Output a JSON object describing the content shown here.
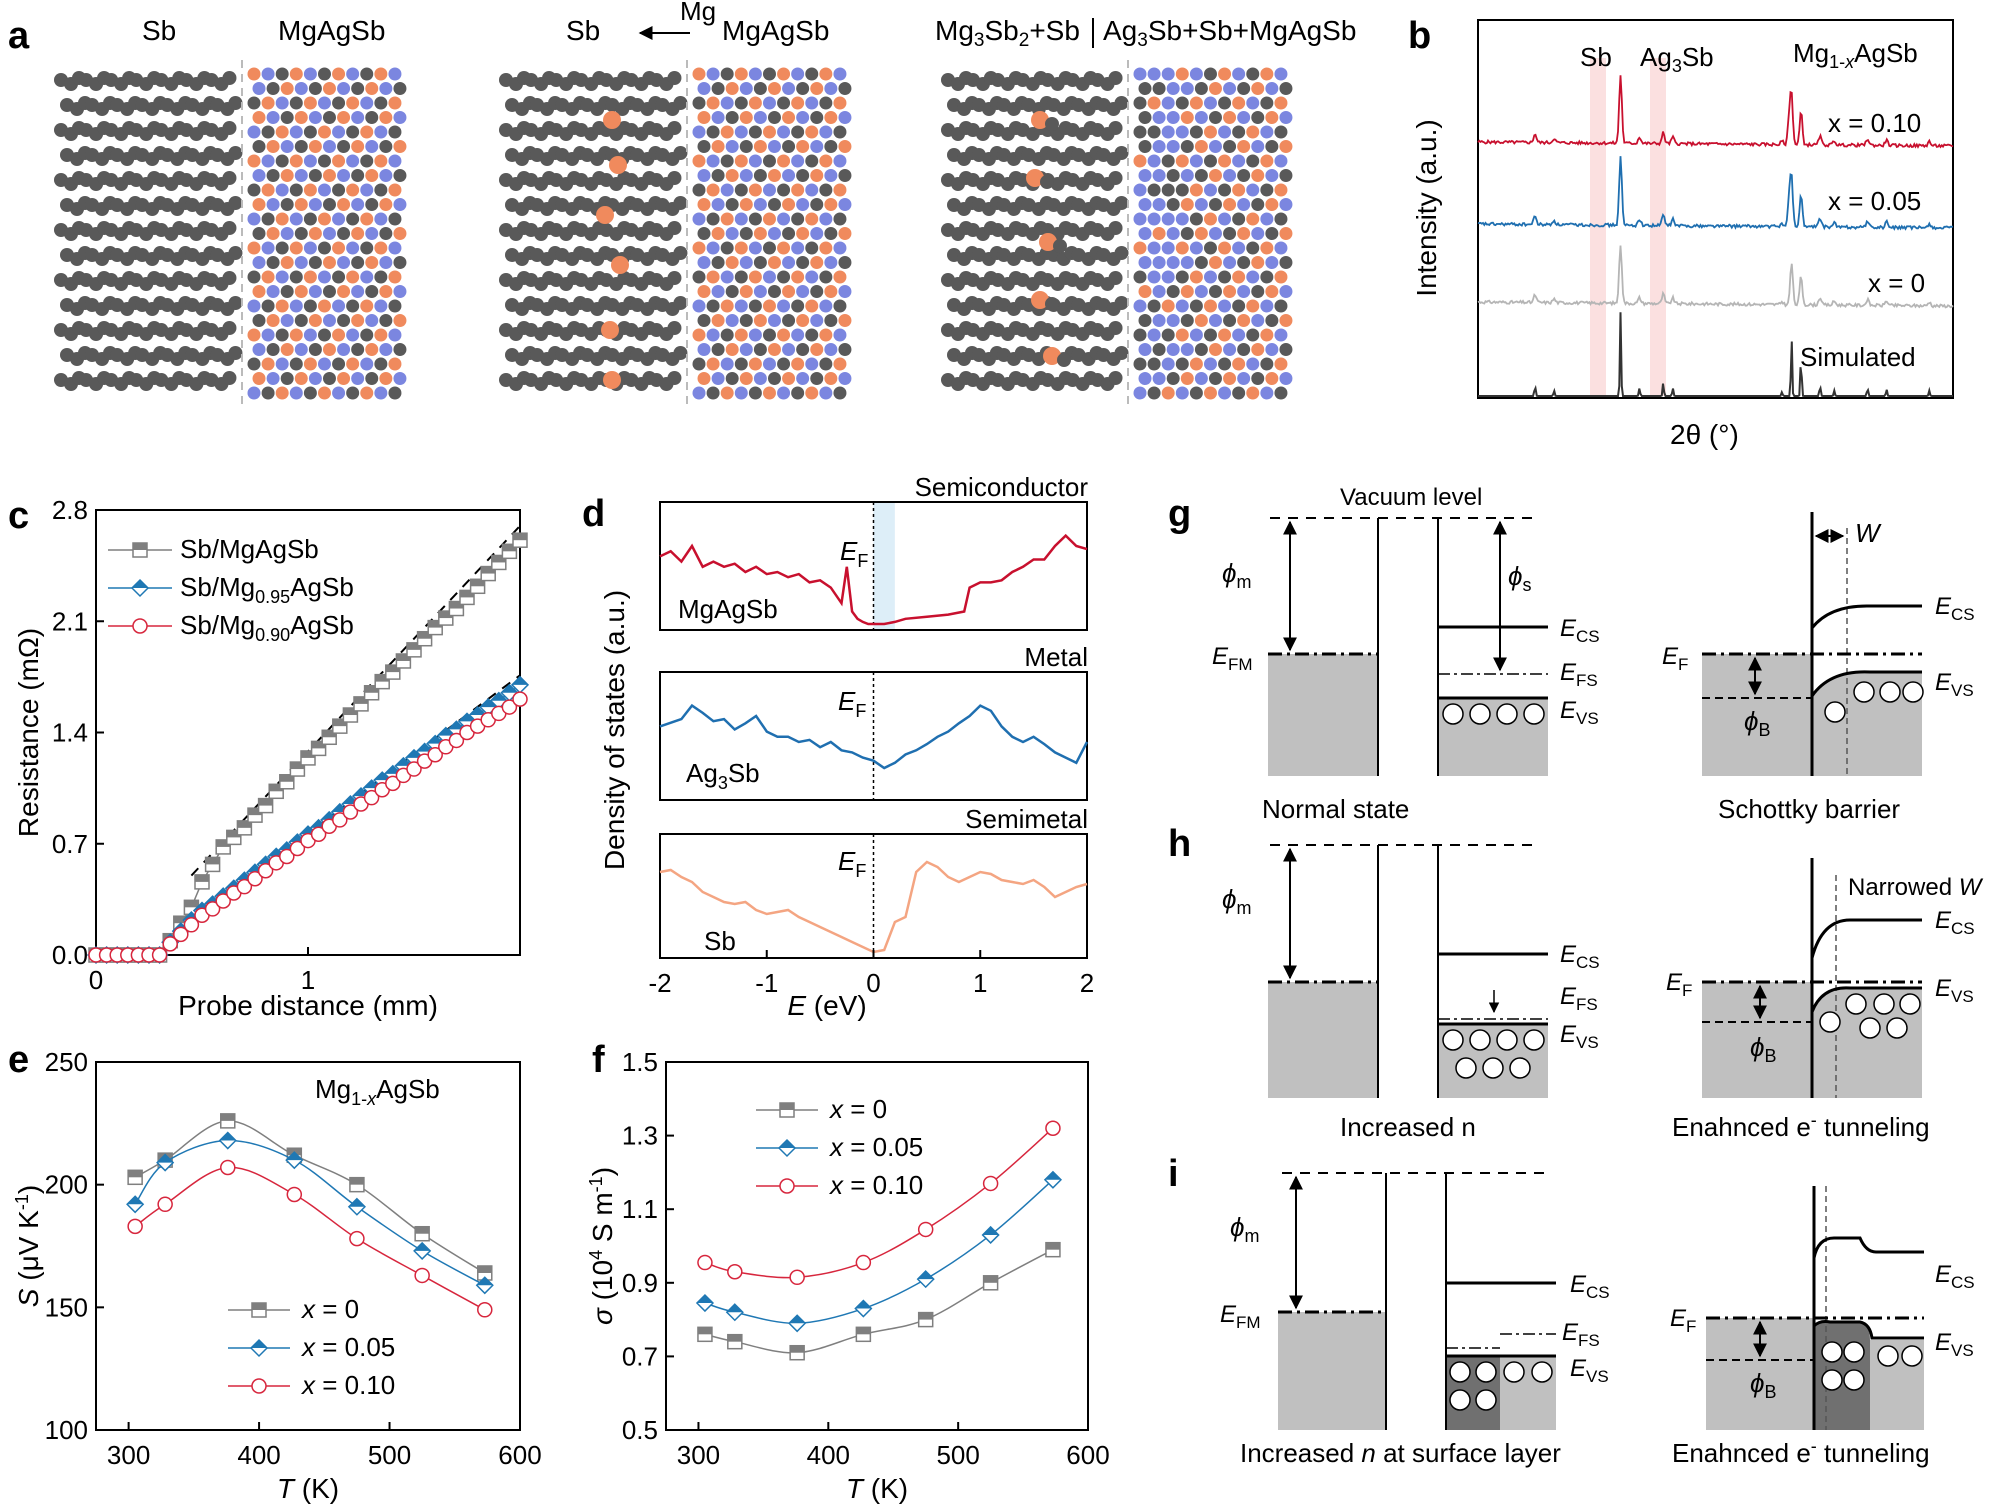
{
  "panel_labels": {
    "a": "a",
    "b": "b",
    "c": "c",
    "d": "d",
    "e": "e",
    "f": "f",
    "g": "g",
    "h": "h",
    "i": "i"
  },
  "panel_a": {
    "s1_left": "Sb",
    "s1_right": "MgAgSb",
    "s2_left": "Sb",
    "s2_arrow": "Mg",
    "s2_right": "MgAgSb",
    "s3_left": "Mg3Sb2+Sb",
    "s3_right": "Ag3Sb+Sb+MgAgSb",
    "colors": {
      "sb": "#595959",
      "ag": "#f08a5d",
      "mg": "#7b86e0"
    }
  },
  "panel_b": {
    "ylabel": "Intensity (a.u.)",
    "xlabel": "2θ (°)",
    "title": "Mg1-xAgSb",
    "marker1": "Sb",
    "marker2": "Ag3Sb",
    "traces": [
      {
        "label": "x = 0.10",
        "color": "#c8102e"
      },
      {
        "label": "x = 0.05",
        "color": "#1f6fb0"
      },
      {
        "label": "x = 0",
        "color": "#b5b5b5"
      },
      {
        "label": "Simulated",
        "color": "#333333"
      }
    ]
  },
  "chart_data": [
    {
      "panel": "c",
      "type": "line",
      "xlabel": "Probe distance (mm)",
      "ylabel": "Resistance (mΩ)",
      "xlim": [
        0,
        2.0
      ],
      "ylim": [
        0,
        2.8
      ],
      "xticks": [
        "0",
        "1"
      ],
      "yticks": [
        "0.0",
        "0.7",
        "1.4",
        "2.1",
        "2.8"
      ],
      "series": [
        {
          "name": "Sb/MgAgSb",
          "color": "#7f7f7f",
          "marker": "square",
          "x": [
            0,
            0.05,
            0.1,
            0.15,
            0.2,
            0.25,
            0.3,
            0.35,
            0.4,
            0.45,
            0.5,
            0.55,
            0.6,
            0.65,
            0.7,
            0.75,
            0.8,
            0.85,
            0.9,
            0.95,
            1.0,
            1.05,
            1.1,
            1.15,
            1.2,
            1.25,
            1.3,
            1.35,
            1.4,
            1.45,
            1.5,
            1.55,
            1.6,
            1.65,
            1.7,
            1.75,
            1.8,
            1.85,
            1.9,
            1.95,
            2.0
          ],
          "values": [
            0,
            0,
            0,
            0,
            0,
            0,
            0,
            0.09,
            0.2,
            0.3,
            0.46,
            0.57,
            0.68,
            0.74,
            0.8,
            0.88,
            0.94,
            1.03,
            1.09,
            1.17,
            1.24,
            1.3,
            1.37,
            1.44,
            1.51,
            1.58,
            1.65,
            1.72,
            1.78,
            1.85,
            1.92,
            1.99,
            2.06,
            2.12,
            2.18,
            2.25,
            2.32,
            2.4,
            2.47,
            2.54,
            2.61
          ]
        },
        {
          "name": "Sb/Mg0.95AgSb",
          "color": "#1f78b4",
          "marker": "diamond",
          "x": [
            0,
            0.05,
            0.1,
            0.15,
            0.2,
            0.25,
            0.3,
            0.35,
            0.4,
            0.45,
            0.5,
            0.55,
            0.6,
            0.65,
            0.7,
            0.75,
            0.8,
            0.85,
            0.9,
            0.95,
            1.0,
            1.05,
            1.1,
            1.15,
            1.2,
            1.25,
            1.3,
            1.35,
            1.4,
            1.45,
            1.5,
            1.55,
            1.6,
            1.65,
            1.7,
            1.75,
            1.8,
            1.85,
            1.9,
            1.95,
            2.0
          ],
          "values": [
            0,
            0,
            0,
            0,
            0,
            0,
            0,
            0.08,
            0.15,
            0.22,
            0.28,
            0.32,
            0.37,
            0.42,
            0.47,
            0.52,
            0.57,
            0.62,
            0.66,
            0.71,
            0.76,
            0.8,
            0.85,
            0.9,
            0.95,
            1.0,
            1.05,
            1.1,
            1.14,
            1.19,
            1.24,
            1.28,
            1.33,
            1.38,
            1.42,
            1.47,
            1.51,
            1.56,
            1.6,
            1.65,
            1.7
          ]
        },
        {
          "name": "Sb/Mg0.90AgSb",
          "color": "#d7263d",
          "marker": "circle",
          "x": [
            0,
            0.05,
            0.1,
            0.15,
            0.2,
            0.25,
            0.3,
            0.35,
            0.4,
            0.45,
            0.5,
            0.55,
            0.6,
            0.65,
            0.7,
            0.75,
            0.8,
            0.85,
            0.9,
            0.95,
            1.0,
            1.05,
            1.1,
            1.15,
            1.2,
            1.25,
            1.3,
            1.35,
            1.4,
            1.45,
            1.5,
            1.55,
            1.6,
            1.65,
            1.7,
            1.75,
            1.8,
            1.85,
            1.9,
            1.95,
            2.0
          ],
          "values": [
            0,
            0,
            0,
            0,
            0,
            0,
            0,
            0.07,
            0.13,
            0.19,
            0.25,
            0.29,
            0.34,
            0.39,
            0.43,
            0.48,
            0.53,
            0.58,
            0.62,
            0.67,
            0.72,
            0.76,
            0.81,
            0.85,
            0.9,
            0.95,
            0.99,
            1.04,
            1.08,
            1.13,
            1.17,
            1.22,
            1.26,
            1.31,
            1.35,
            1.4,
            1.44,
            1.48,
            1.52,
            1.56,
            1.61
          ]
        }
      ],
      "fit_lines": [
        {
          "x": [
            0.45,
            2.0
          ],
          "values": [
            0.5,
            2.7
          ]
        },
        {
          "x": [
            0.35,
            2.0
          ],
          "values": [
            0.12,
            1.76
          ]
        }
      ]
    },
    {
      "panel": "d",
      "type": "line",
      "xlabel": "E (eV)",
      "ylabel": "Density of states (a.u.)",
      "xlim": [
        -2,
        2
      ],
      "xticks": [
        "-2",
        "-1",
        "0",
        "1",
        "2"
      ],
      "fermi_label": "EF",
      "subpanels": [
        {
          "title": "Semiconductor",
          "material": "MgAgSb",
          "color": "#c8102e",
          "x": [
            -2,
            -1.9,
            -1.8,
            -1.7,
            -1.6,
            -1.5,
            -1.4,
            -1.3,
            -1.2,
            -1.1,
            -1.0,
            -0.9,
            -0.8,
            -0.7,
            -0.6,
            -0.5,
            -0.4,
            -0.3,
            -0.25,
            -0.2,
            -0.15,
            -0.1,
            -0.05,
            0,
            0.1,
            0.2,
            0.3,
            0.5,
            0.7,
            0.85,
            0.9,
            1.0,
            1.1,
            1.2,
            1.3,
            1.4,
            1.5,
            1.6,
            1.7,
            1.8,
            1.9,
            2.0
          ],
          "values": [
            0.65,
            0.7,
            0.6,
            0.75,
            0.55,
            0.6,
            0.55,
            0.58,
            0.5,
            0.55,
            0.48,
            0.5,
            0.45,
            0.48,
            0.4,
            0.42,
            0.35,
            0.2,
            0.55,
            0.12,
            0.05,
            0.02,
            0.0,
            0.0,
            0.0,
            0.02,
            0.05,
            0.07,
            0.09,
            0.12,
            0.35,
            0.4,
            0.4,
            0.42,
            0.5,
            0.55,
            0.62,
            0.62,
            0.75,
            0.85,
            0.75,
            0.72
          ]
        },
        {
          "title": "Metal",
          "material": "Ag3Sb",
          "color": "#1f6fb0",
          "x": [
            -2,
            -1.8,
            -1.7,
            -1.6,
            -1.5,
            -1.4,
            -1.3,
            -1.2,
            -1.1,
            -1.0,
            -0.9,
            -0.8,
            -0.7,
            -0.6,
            -0.5,
            -0.4,
            -0.3,
            -0.2,
            -0.1,
            0,
            0.1,
            0.2,
            0.3,
            0.4,
            0.5,
            0.6,
            0.7,
            0.8,
            0.9,
            1.0,
            1.1,
            1.2,
            1.3,
            1.4,
            1.5,
            1.6,
            1.7,
            1.8,
            1.9,
            2.0
          ],
          "values": [
            0.65,
            0.72,
            0.85,
            0.78,
            0.7,
            0.72,
            0.62,
            0.68,
            0.75,
            0.6,
            0.55,
            0.55,
            0.5,
            0.52,
            0.45,
            0.5,
            0.42,
            0.4,
            0.35,
            0.32,
            0.25,
            0.3,
            0.38,
            0.42,
            0.48,
            0.55,
            0.6,
            0.68,
            0.75,
            0.85,
            0.8,
            0.65,
            0.55,
            0.5,
            0.55,
            0.48,
            0.4,
            0.35,
            0.3,
            0.5
          ]
        },
        {
          "title": "Semimetal",
          "material": "Sb",
          "color": "#f4a582",
          "x": [
            -2,
            -1.9,
            -1.8,
            -1.7,
            -1.6,
            -1.5,
            -1.4,
            -1.3,
            -1.2,
            -1.1,
            -1.0,
            -0.9,
            -0.8,
            -0.7,
            -0.6,
            -0.5,
            -0.4,
            -0.3,
            -0.2,
            -0.1,
            0,
            0.1,
            0.2,
            0.3,
            0.4,
            0.5,
            0.6,
            0.7,
            0.8,
            0.9,
            1.0,
            1.1,
            1.2,
            1.3,
            1.4,
            1.5,
            1.6,
            1.7,
            1.8,
            1.9,
            2.0
          ],
          "values": [
            0.8,
            0.82,
            0.75,
            0.7,
            0.6,
            0.55,
            0.5,
            0.48,
            0.5,
            0.42,
            0.38,
            0.4,
            0.42,
            0.35,
            0.3,
            0.25,
            0.2,
            0.15,
            0.1,
            0.05,
            0.0,
            0.02,
            0.3,
            0.35,
            0.8,
            0.9,
            0.85,
            0.75,
            0.7,
            0.75,
            0.8,
            0.78,
            0.72,
            0.7,
            0.68,
            0.72,
            0.65,
            0.55,
            0.6,
            0.65,
            0.68
          ]
        }
      ]
    },
    {
      "panel": "e",
      "type": "line",
      "title": "Mg1-xAgSb",
      "xlabel": "T (K)",
      "ylabel": "S (μV K-1)",
      "xlim": [
        275,
        600
      ],
      "ylim": [
        100,
        250
      ],
      "xticks": [
        "300",
        "400",
        "500",
        "600"
      ],
      "yticks": [
        "100",
        "150",
        "200",
        "250"
      ],
      "x": [
        305,
        328,
        376,
        427,
        475,
        525,
        573
      ],
      "series": [
        {
          "name": "x = 0",
          "color": "#7f7f7f",
          "marker": "square",
          "values": [
            203,
            210,
            226,
            212,
            200,
            180,
            164
          ]
        },
        {
          "name": "x = 0.05",
          "color": "#1f78b4",
          "marker": "diamond",
          "values": [
            192,
            209,
            218,
            210,
            191,
            173,
            159
          ]
        },
        {
          "name": "x = 0.10",
          "color": "#d7263d",
          "marker": "circle",
          "values": [
            183,
            192,
            207,
            196,
            178,
            163,
            149
          ]
        }
      ]
    },
    {
      "panel": "f",
      "type": "line",
      "xlabel": "T (K)",
      "ylabel": "σ (10^4 S m^-1)",
      "xlim": [
        275,
        600
      ],
      "ylim": [
        0.5,
        1.5
      ],
      "xticks": [
        "300",
        "400",
        "500",
        "600"
      ],
      "yticks": [
        "0.5",
        "0.7",
        "0.9",
        "1.1",
        "1.3",
        "1.5"
      ],
      "x": [
        305,
        328,
        376,
        427,
        475,
        525,
        573
      ],
      "series": [
        {
          "name": "x = 0",
          "color": "#7f7f7f",
          "marker": "square",
          "values": [
            0.76,
            0.74,
            0.71,
            0.76,
            0.8,
            0.9,
            0.99
          ]
        },
        {
          "name": "x = 0.05",
          "color": "#1f78b4",
          "marker": "diamond",
          "values": [
            0.845,
            0.82,
            0.79,
            0.83,
            0.91,
            1.03,
            1.18
          ]
        },
        {
          "name": "x = 0.10",
          "color": "#d7263d",
          "marker": "circle",
          "values": [
            0.955,
            0.93,
            0.915,
            0.955,
            1.045,
            1.17,
            1.32
          ]
        }
      ]
    }
  ],
  "panel_g": {
    "vacuum": "Vacuum level",
    "phi_m": "ϕm",
    "phi_s": "ϕs",
    "efm": "EFM",
    "ecs": "ECS",
    "efs": "EFS",
    "evs": "EVS",
    "ef": "EF",
    "phi_b": "ϕB",
    "w": "W",
    "caption_left": "Normal state",
    "caption_right": "Schottky barrier"
  },
  "panel_h": {
    "phi_m": "ϕm",
    "ecs": "ECS",
    "efs": "EFS",
    "evs": "EVS",
    "ef": "EF",
    "phi_b": "ϕB",
    "narrowed": "Narrowed W",
    "caption_left": "Increased n",
    "caption_right": "Enahnced e- tunneling"
  },
  "panel_i": {
    "phi_m": "ϕm",
    "efm": "EFM",
    "ecs": "ECS",
    "efs": "EFS",
    "evs": "EVS",
    "ef": "EF",
    "phi_b": "ϕB",
    "caption_left": "Increased n at surface layer",
    "caption_right": "Enahnced e- tunneling"
  }
}
